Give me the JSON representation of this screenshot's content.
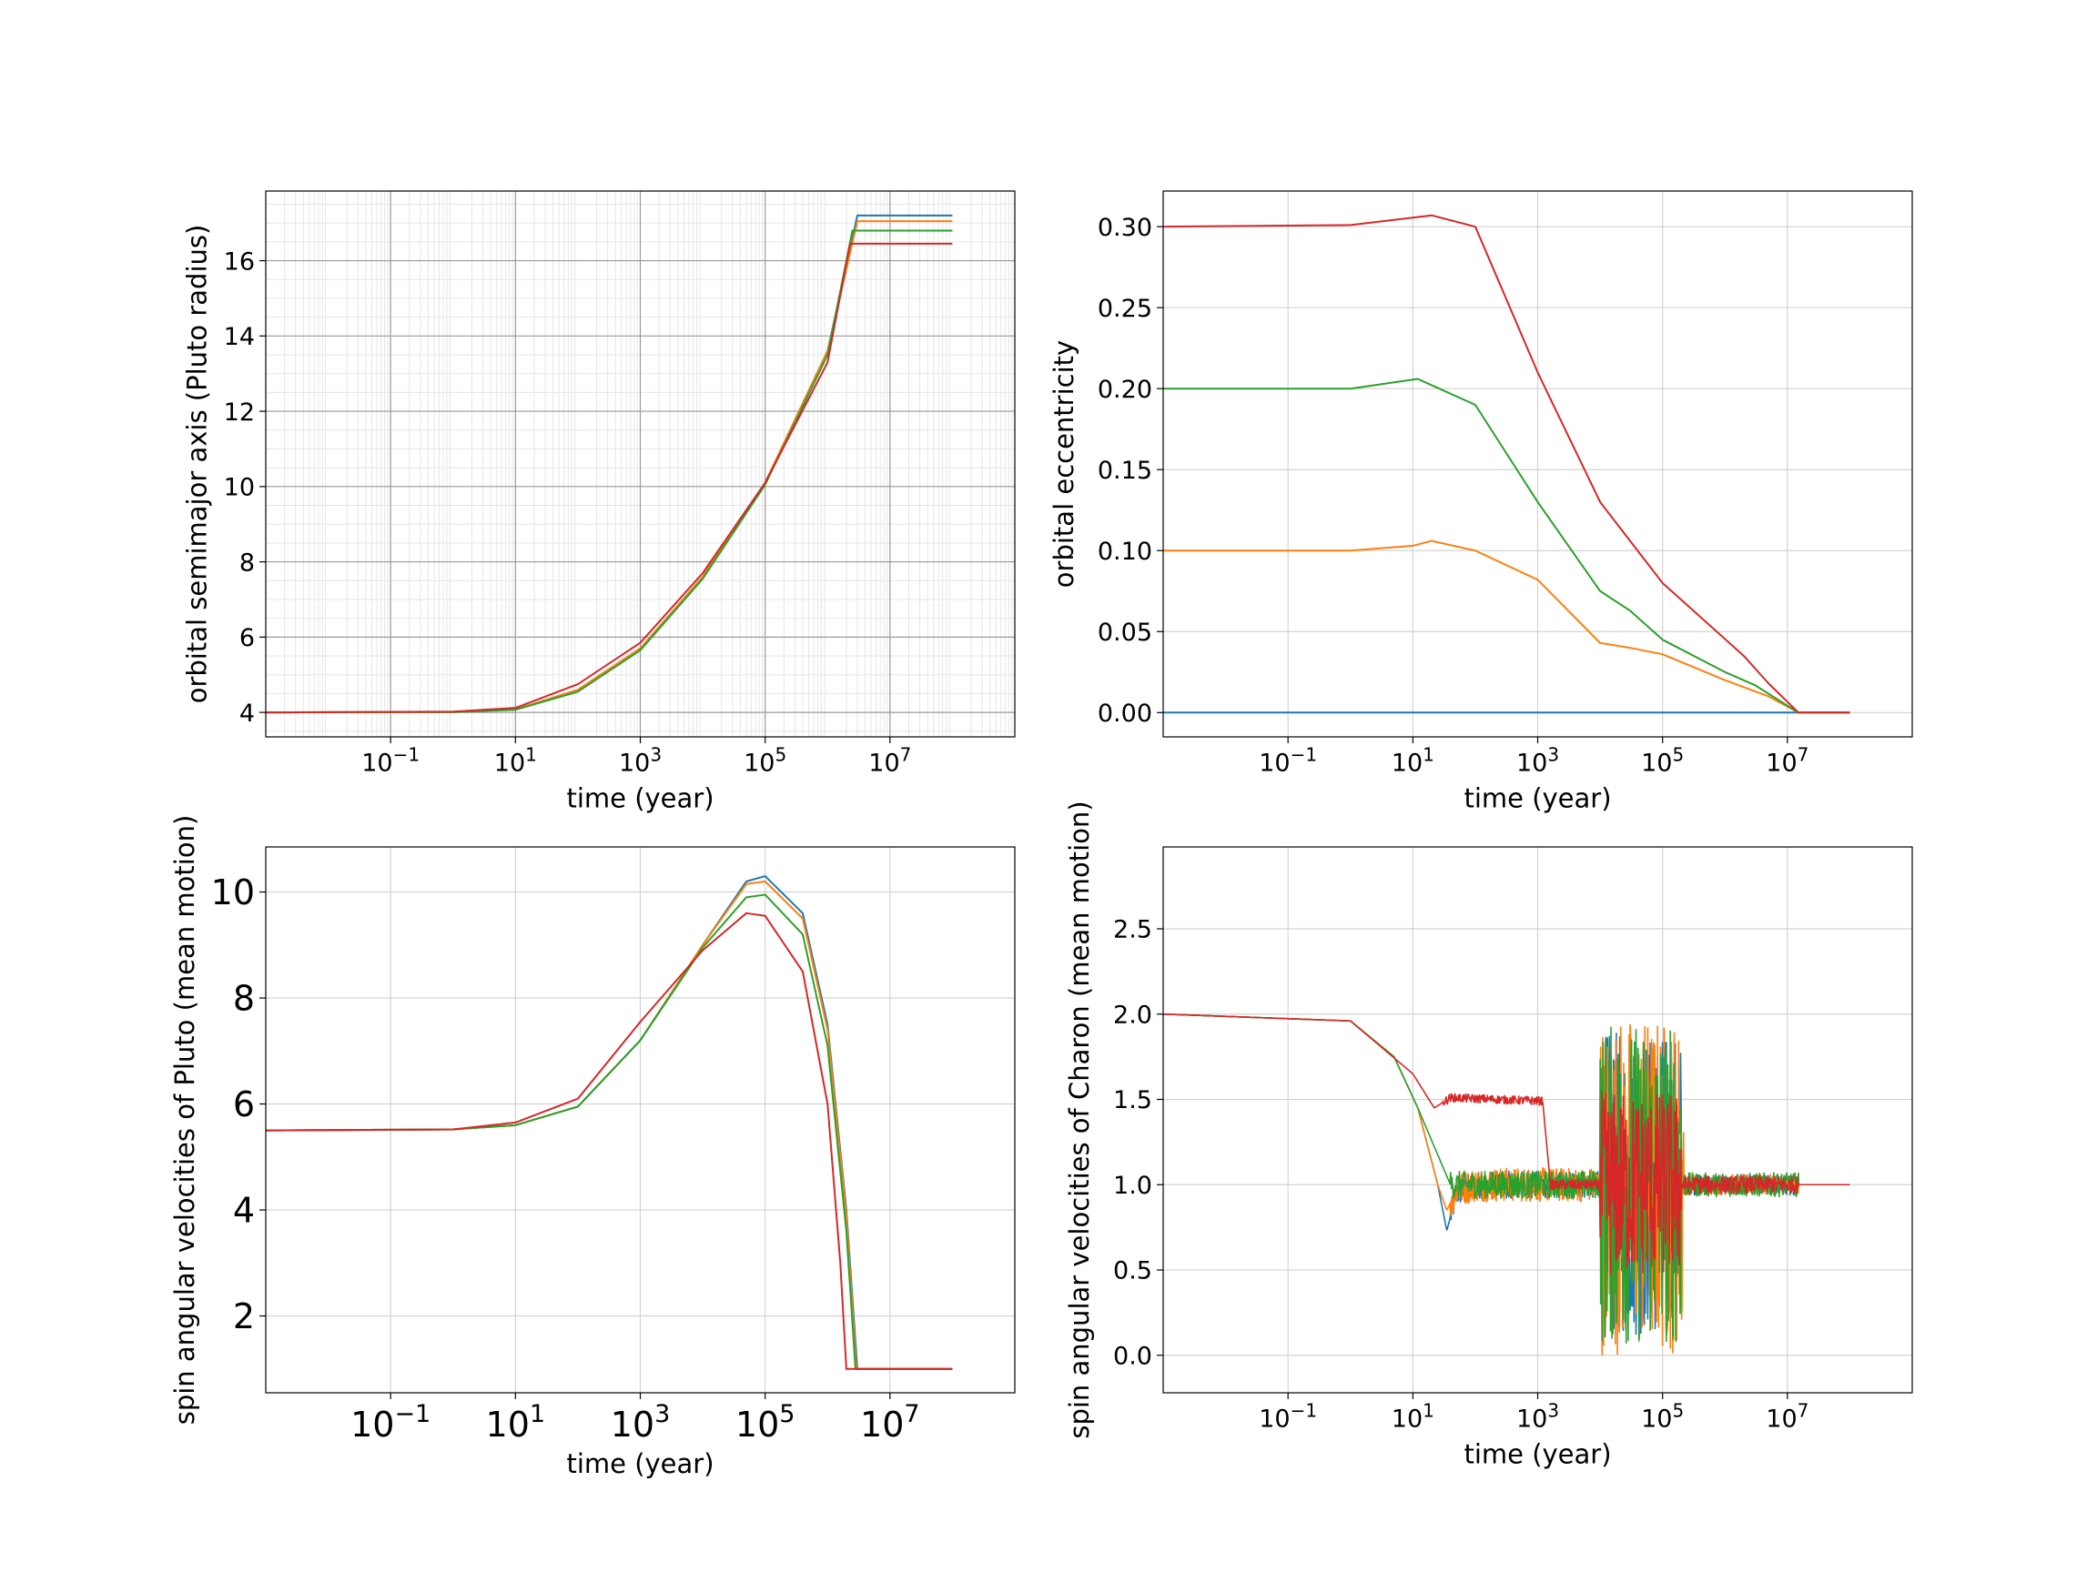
{
  "figure": {
    "series_colors": [
      "#1f77b4",
      "#ff7f0e",
      "#2ca02c",
      "#d62728"
    ]
  },
  "chart_data": [
    {
      "id": "semimajor",
      "type": "line",
      "xlabel": "time  (year)",
      "ylabel": "orbital semimajor axis (Pluto radius)",
      "xscale": "log",
      "xlim": [
        0.001,
        1000000000
      ],
      "xticks": [
        0.1,
        10,
        1000,
        100000,
        10000000
      ],
      "xtick_labels": [
        [
          "10",
          "−1"
        ],
        [
          "10",
          "1"
        ],
        [
          "10",
          "3"
        ],
        [
          "10",
          "5"
        ],
        [
          "10",
          "7"
        ]
      ],
      "ylim": [
        3.35,
        17.85
      ],
      "yticks": [
        4,
        6,
        8,
        10,
        12,
        14,
        16
      ],
      "ytick_labels": [
        "4",
        "6",
        "8",
        "10",
        "12",
        "14",
        "16"
      ],
      "grid": "major and minor",
      "series": [
        {
          "color": "#1f77b4",
          "points": [
            [
              0.001,
              4.0
            ],
            [
              1,
              4.01
            ],
            [
              10,
              4.08
            ],
            [
              100,
              4.6
            ],
            [
              1000,
              5.7
            ],
            [
              10000,
              7.6
            ],
            [
              100000,
              10.1
            ],
            [
              1000000,
              13.6
            ],
            [
              3000000,
              17.2
            ],
            [
              100000000,
              17.2
            ]
          ]
        },
        {
          "color": "#ff7f0e",
          "points": [
            [
              0.001,
              4.0
            ],
            [
              1,
              4.01
            ],
            [
              10,
              4.08
            ],
            [
              100,
              4.6
            ],
            [
              1000,
              5.7
            ],
            [
              10000,
              7.6
            ],
            [
              100000,
              10.1
            ],
            [
              1000000,
              13.6
            ],
            [
              3000000,
              17.05
            ],
            [
              100000000,
              17.05
            ]
          ]
        },
        {
          "color": "#2ca02c",
          "points": [
            [
              0.001,
              4.0
            ],
            [
              1,
              4.01
            ],
            [
              10,
              4.07
            ],
            [
              100,
              4.55
            ],
            [
              1000,
              5.65
            ],
            [
              10000,
              7.55
            ],
            [
              100000,
              10.05
            ],
            [
              1000000,
              13.5
            ],
            [
              2500000,
              16.8
            ],
            [
              100000000,
              16.8
            ]
          ]
        },
        {
          "color": "#d62728",
          "points": [
            [
              0.001,
              4.0
            ],
            [
              1,
              4.02
            ],
            [
              10,
              4.12
            ],
            [
              100,
              4.75
            ],
            [
              1000,
              5.85
            ],
            [
              10000,
              7.7
            ],
            [
              100000,
              10.1
            ],
            [
              1000000,
              13.3
            ],
            [
              2300000,
              16.45
            ],
            [
              100000000,
              16.45
            ]
          ]
        }
      ]
    },
    {
      "id": "eccentricity",
      "type": "line",
      "xlabel": "time  (year)",
      "ylabel": "orbital eccentricity",
      "xscale": "log",
      "xlim": [
        0.001,
        1000000000
      ],
      "xticks": [
        0.1,
        10,
        1000,
        100000,
        10000000
      ],
      "xtick_labels": [
        [
          "10",
          "−1"
        ],
        [
          "10",
          "1"
        ],
        [
          "10",
          "3"
        ],
        [
          "10",
          "5"
        ],
        [
          "10",
          "7"
        ]
      ],
      "ylim": [
        -0.015,
        0.322
      ],
      "yticks": [
        0.0,
        0.05,
        0.1,
        0.15,
        0.2,
        0.25,
        0.3
      ],
      "ytick_labels": [
        "0.00",
        "0.05",
        "0.10",
        "0.15",
        "0.20",
        "0.25",
        "0.30"
      ],
      "grid": "major",
      "series": [
        {
          "color": "#1f77b4",
          "points": [
            [
              0.001,
              0.0
            ],
            [
              100000000,
              0.0
            ]
          ]
        },
        {
          "color": "#ff7f0e",
          "points": [
            [
              0.001,
              0.1
            ],
            [
              1,
              0.1
            ],
            [
              10,
              0.103
            ],
            [
              20,
              0.106
            ],
            [
              100,
              0.1
            ],
            [
              1000,
              0.082
            ],
            [
              10000,
              0.043
            ],
            [
              30000,
              0.04
            ],
            [
              100000,
              0.036
            ],
            [
              1000000,
              0.02
            ],
            [
              5000000,
              0.01
            ],
            [
              15000000,
              0.0
            ],
            [
              100000000,
              0.0
            ]
          ]
        },
        {
          "color": "#2ca02c",
          "points": [
            [
              0.001,
              0.2
            ],
            [
              1,
              0.2
            ],
            [
              12,
              0.206
            ],
            [
              100,
              0.19
            ],
            [
              1000,
              0.13
            ],
            [
              10000,
              0.075
            ],
            [
              30000,
              0.063
            ],
            [
              100000,
              0.045
            ],
            [
              1000000,
              0.025
            ],
            [
              3000000,
              0.017
            ],
            [
              15000000,
              0.0
            ],
            [
              100000000,
              0.0
            ]
          ]
        },
        {
          "color": "#d62728",
          "points": [
            [
              0.001,
              0.3
            ],
            [
              1,
              0.301
            ],
            [
              20,
              0.307
            ],
            [
              100,
              0.3
            ],
            [
              1000,
              0.21
            ],
            [
              10000,
              0.13
            ],
            [
              100000,
              0.08
            ],
            [
              2000000,
              0.035
            ],
            [
              5000000,
              0.018
            ],
            [
              15000000,
              0.0
            ],
            [
              100000000,
              0.0
            ]
          ]
        }
      ]
    },
    {
      "id": "pluto_spin",
      "type": "line",
      "xlabel": "time (year)",
      "ylabel": "spin angular velocities of Pluto (mean motion)",
      "xscale": "log",
      "xlim": [
        0.001,
        1000000000
      ],
      "xticks": [
        0.1,
        10,
        1000,
        100000,
        10000000
      ],
      "xtick_labels": [
        [
          "10",
          "−1"
        ],
        [
          "10",
          "1"
        ],
        [
          "10",
          "3"
        ],
        [
          "10",
          "5"
        ],
        [
          "10",
          "7"
        ]
      ],
      "ylim": [
        0.55,
        10.85
      ],
      "yticks": [
        2,
        4,
        6,
        8,
        10
      ],
      "ytick_labels": [
        "2",
        "4",
        "6",
        "8",
        "10"
      ],
      "grid": "major",
      "series": [
        {
          "color": "#1f77b4",
          "points": [
            [
              0.001,
              5.5
            ],
            [
              1,
              5.52
            ],
            [
              10,
              5.6
            ],
            [
              100,
              5.95
            ],
            [
              1000,
              7.2
            ],
            [
              10000,
              9.0
            ],
            [
              50000,
              10.2
            ],
            [
              100000,
              10.3
            ],
            [
              400000,
              9.6
            ],
            [
              1000000,
              7.5
            ],
            [
              2000000,
              4.0
            ],
            [
              3000000,
              1.0
            ],
            [
              100000000,
              1.0
            ]
          ]
        },
        {
          "color": "#ff7f0e",
          "points": [
            [
              0.001,
              5.5
            ],
            [
              1,
              5.52
            ],
            [
              10,
              5.6
            ],
            [
              100,
              5.95
            ],
            [
              1000,
              7.2
            ],
            [
              10000,
              9.0
            ],
            [
              50000,
              10.15
            ],
            [
              100000,
              10.2
            ],
            [
              400000,
              9.5
            ],
            [
              1000000,
              7.4
            ],
            [
              2000000,
              3.9
            ],
            [
              2900000,
              1.0
            ],
            [
              100000000,
              1.0
            ]
          ]
        },
        {
          "color": "#2ca02c",
          "points": [
            [
              0.001,
              5.5
            ],
            [
              1,
              5.52
            ],
            [
              10,
              5.6
            ],
            [
              100,
              5.95
            ],
            [
              1000,
              7.2
            ],
            [
              10000,
              8.95
            ],
            [
              50000,
              9.9
            ],
            [
              100000,
              9.95
            ],
            [
              400000,
              9.2
            ],
            [
              1000000,
              7.1
            ],
            [
              2000000,
              3.6
            ],
            [
              2800000,
              1.0
            ],
            [
              100000000,
              1.0
            ]
          ]
        },
        {
          "color": "#d62728",
          "points": [
            [
              0.001,
              5.5
            ],
            [
              1,
              5.52
            ],
            [
              10,
              5.65
            ],
            [
              100,
              6.1
            ],
            [
              1000,
              7.55
            ],
            [
              10000,
              8.9
            ],
            [
              50000,
              9.6
            ],
            [
              100000,
              9.55
            ],
            [
              400000,
              8.5
            ],
            [
              1000000,
              6.0
            ],
            [
              1600000,
              3.0
            ],
            [
              2000000,
              1.0
            ],
            [
              100000000,
              1.0
            ]
          ]
        }
      ]
    },
    {
      "id": "charon_spin",
      "type": "line",
      "xlabel": "time  (year)",
      "ylabel": "spin angular velocities of Charon (mean motion)",
      "xscale": "log",
      "xlim": [
        0.001,
        1000000000
      ],
      "xticks": [
        0.1,
        10,
        1000,
        100000,
        10000000
      ],
      "xtick_labels": [
        [
          "10",
          "−1"
        ],
        [
          "10",
          "1"
        ],
        [
          "10",
          "3"
        ],
        [
          "10",
          "5"
        ],
        [
          "10",
          "7"
        ]
      ],
      "ylim": [
        -0.22,
        2.98
      ],
      "yticks": [
        0.0,
        0.5,
        1.0,
        1.5,
        2.0,
        2.5
      ],
      "ytick_labels": [
        "0.0",
        "0.5",
        "1.0",
        "1.5",
        "2.0",
        "2.5"
      ],
      "grid": "major",
      "series": [
        {
          "color": "#1f77b4",
          "points": [
            [
              0.001,
              2.0
            ],
            [
              1,
              1.96
            ],
            [
              5,
              1.75
            ],
            [
              12,
              1.45
            ],
            [
              25,
              1.0
            ],
            [
              35,
              0.73
            ],
            [
              50,
              0.95
            ],
            [
              100,
              1.0
            ],
            [
              100000000,
              1.0
            ]
          ],
          "noise": [
            [
              40,
              10000,
              0.08
            ],
            [
              10000,
              200000,
              0.9
            ],
            [
              200000,
              15000000,
              0.06
            ]
          ]
        },
        {
          "color": "#ff7f0e",
          "points": [
            [
              0.001,
              2.0
            ],
            [
              1,
              1.96
            ],
            [
              5,
              1.75
            ],
            [
              12,
              1.45
            ],
            [
              25,
              1.0
            ],
            [
              35,
              0.85
            ],
            [
              50,
              0.97
            ],
            [
              100,
              1.0
            ],
            [
              100000000,
              1.0
            ]
          ],
          "noise": [
            [
              40,
              10000,
              0.1
            ],
            [
              10000,
              220000,
              1.0
            ],
            [
              220000,
              15000000,
              0.06
            ]
          ]
        },
        {
          "color": "#2ca02c",
          "points": [
            [
              0.001,
              2.0
            ],
            [
              1,
              1.96
            ],
            [
              5,
              1.75
            ],
            [
              12,
              1.45
            ],
            [
              40,
              1.0
            ],
            [
              100000000,
              1.0
            ]
          ],
          "noise": [
            [
              40,
              10000,
              0.08
            ],
            [
              10000,
              200000,
              0.95
            ],
            [
              200000,
              15000000,
              0.07
            ]
          ]
        },
        {
          "color": "#d62728",
          "points": [
            [
              0.001,
              2.0
            ],
            [
              1,
              1.96
            ],
            [
              10,
              1.65
            ],
            [
              22,
              1.45
            ],
            [
              40,
              1.51
            ],
            [
              1200,
              1.49
            ],
            [
              1600,
              1.0
            ],
            [
              100000000,
              1.0
            ]
          ],
          "noise": [
            [
              30,
              1200,
              0.025
            ],
            [
              1600,
              10000,
              0.03
            ],
            [
              10000,
              200000,
              0.55
            ],
            [
              200000,
              15000000,
              0.05
            ]
          ]
        }
      ]
    }
  ]
}
